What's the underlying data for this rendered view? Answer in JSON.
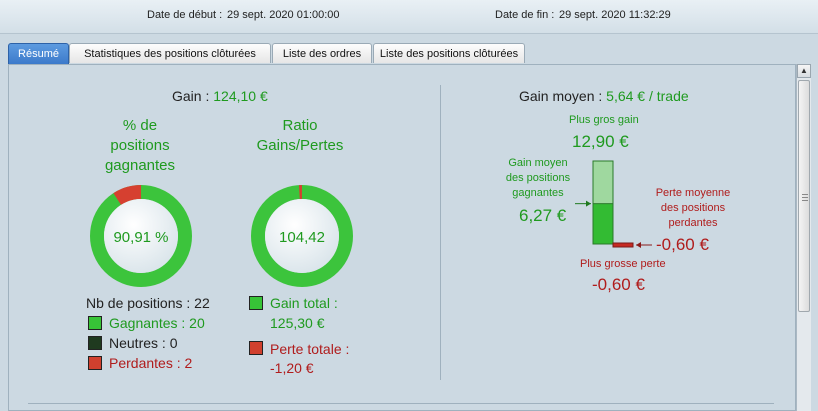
{
  "header": {
    "start_label": "Date de début :",
    "start_value": "29 sept. 2020 01:00:00",
    "end_label": "Date de fin :",
    "end_value": "29 sept. 2020 11:32:29"
  },
  "tabs": [
    {
      "label": "Résumé"
    },
    {
      "label": "Statistiques des positions clôturées"
    },
    {
      "label": "Liste des ordres"
    },
    {
      "label": "Liste des positions clôturées"
    }
  ],
  "left": {
    "gain_label": "Gain :",
    "gain_value": "124,10 €",
    "pct_title_1": "% de",
    "pct_title_2": "positions",
    "pct_title_3": "gagnantes",
    "pct_value": "90,91 %",
    "pct_fraction": 0.9091,
    "ratio_title_1": "Ratio",
    "ratio_title_2": "Gains/Pertes",
    "ratio_value": "104,42",
    "ratio_loss_fraction": 0.0095,
    "nb_label": "Nb de positions : 22",
    "winners": "Gagnantes : 20",
    "neutrals": "Neutres : 0",
    "losers": "Perdantes : 2",
    "gain_total_label": "Gain total :",
    "gain_total_value": "125,30 €",
    "loss_total_label": "Perte totale :",
    "loss_total_value": "-1,20 €"
  },
  "right": {
    "avg_label": "Gain moyen :",
    "avg_value": "5,64 € / trade",
    "biggest_gain_label": "Plus gros gain",
    "biggest_gain_value": "12,90 €",
    "avg_win_label_1": "Gain moyen",
    "avg_win_label_2": "des positions",
    "avg_win_label_3": "gagnantes",
    "avg_win_value": "6,27 €",
    "avg_loss_label_1": "Perte moyenne",
    "avg_loss_label_2": "des positions",
    "avg_loss_label_3": "perdantes",
    "avg_loss_value": "-0,60 €",
    "biggest_loss_label": "Plus grosse perte",
    "biggest_loss_value": "-0,60 €",
    "bar_max": 12.9,
    "bar_avg_win": 6.27,
    "bar_avg_loss": 0.6
  },
  "colors": {
    "green": "#1f9a1f",
    "red": "#b01c1c",
    "ring_green": "#3cc43c",
    "ring_red": "#d64030",
    "tab_active": "#3a78c9"
  }
}
